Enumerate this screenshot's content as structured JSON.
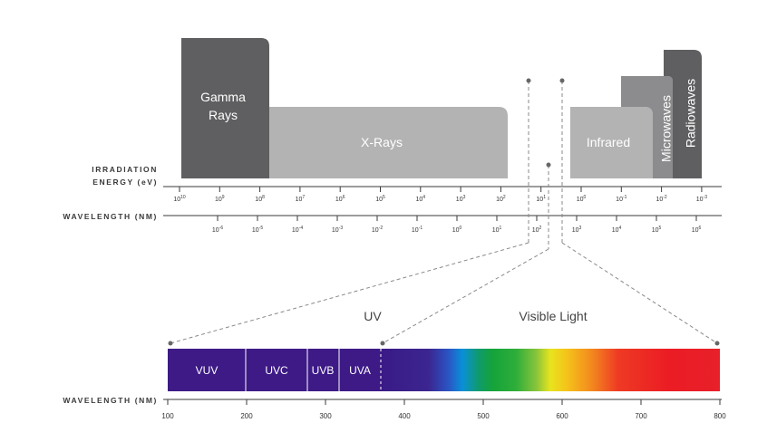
{
  "bands": [
    {
      "id": "gamma",
      "lines": [
        "Gamma",
        "Rays"
      ],
      "color": "#5f5f61"
    },
    {
      "id": "xrays",
      "lines": [
        "X-Rays"
      ],
      "color": "#b3b3b4"
    },
    {
      "id": "infrared",
      "lines": [
        "Infrared"
      ],
      "color": "#b3b3b4"
    },
    {
      "id": "microwaves",
      "lines": [
        "Microwaves"
      ],
      "color": "#8c8c8e"
    },
    {
      "id": "radiowaves",
      "lines": [
        "Radiowaves"
      ],
      "color": "#5f5f61"
    }
  ],
  "axes": {
    "energy_label_line1": "IRRADIATION",
    "energy_label_line2": "ENERGY (eV)",
    "wavelength_label": "WAVELENGTH (NM)",
    "bottom_wavelength_label": "WAVELENGTH (NM)"
  },
  "energy_ticks": [
    {
      "base": "10",
      "exp": "10"
    },
    {
      "base": "10",
      "exp": "9"
    },
    {
      "base": "10",
      "exp": "8"
    },
    {
      "base": "10",
      "exp": "7"
    },
    {
      "base": "10",
      "exp": "6"
    },
    {
      "base": "10",
      "exp": "5"
    },
    {
      "base": "10",
      "exp": "4"
    },
    {
      "base": "10",
      "exp": "3"
    },
    {
      "base": "10",
      "exp": "2"
    },
    {
      "base": "10",
      "exp": "1"
    },
    {
      "base": "10",
      "exp": "0"
    },
    {
      "base": "10",
      "exp": "-1"
    },
    {
      "base": "10",
      "exp": "-2"
    },
    {
      "base": "10",
      "exp": "-3"
    }
  ],
  "wavelength_ticks": [
    {
      "base": "10",
      "exp": "-6"
    },
    {
      "base": "10",
      "exp": "-5"
    },
    {
      "base": "10",
      "exp": "-4"
    },
    {
      "base": "10",
      "exp": "-3"
    },
    {
      "base": "10",
      "exp": "-2"
    },
    {
      "base": "10",
      "exp": "-1"
    },
    {
      "base": "10",
      "exp": "0"
    },
    {
      "base": "10",
      "exp": "1"
    },
    {
      "base": "10",
      "exp": "2"
    },
    {
      "base": "10",
      "exp": "3"
    },
    {
      "base": "10",
      "exp": "4"
    },
    {
      "base": "10",
      "exp": "5"
    },
    {
      "base": "10",
      "exp": "6"
    }
  ],
  "regions": {
    "uv": "UV",
    "visible": "Visible Light"
  },
  "uv_segments": [
    {
      "label": "VUV",
      "from": 100,
      "to": 200
    },
    {
      "label": "UVC",
      "from": 200,
      "to": 280
    },
    {
      "label": "UVB",
      "from": 280,
      "to": 320
    },
    {
      "label": "UVA",
      "from": 320,
      "to": 370
    }
  ],
  "bottom_ticks": [
    "100",
    "200",
    "300",
    "400",
    "500",
    "600",
    "700",
    "800"
  ],
  "colors": {
    "uv_purple": "#3d1a86",
    "band_dark": "#5f5f61",
    "band_light": "#b3b3b4",
    "band_mid": "#8c8c8e"
  }
}
